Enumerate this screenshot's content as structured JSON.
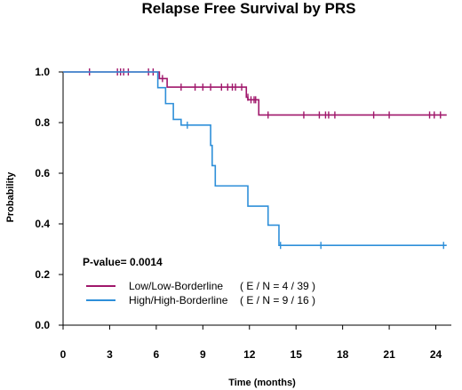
{
  "chart_data": {
    "type": "line",
    "title": "Relapse Free Survival by PRS",
    "xlabel": "Time (months)",
    "ylabel": "Probability",
    "xlim": [
      0,
      25
    ],
    "ylim": [
      0,
      1.0
    ],
    "x_ticks": [
      "0",
      "3",
      "6",
      "9",
      "12",
      "15",
      "18",
      "21",
      "24"
    ],
    "y_ticks": [
      "0.0",
      "0.2",
      "0.4",
      "0.6",
      "0.8",
      "1.0"
    ],
    "annotation": "P-value= 0.0014",
    "legend_position": "bottom-left",
    "grid": false,
    "series": [
      {
        "name": "Low/Low-Borderline",
        "stats": "( E / N = 4 / 39 )",
        "color": "#A0176B",
        "steps": [
          [
            0,
            1.0
          ],
          [
            6.2,
            0.974
          ],
          [
            6.7,
            0.94
          ],
          [
            11.8,
            0.9
          ],
          [
            11.9,
            0.89
          ],
          [
            12.6,
            0.83
          ],
          [
            24.7,
            0.83
          ]
        ],
        "censored": [
          [
            1.7,
            1.0
          ],
          [
            3.5,
            1.0
          ],
          [
            3.7,
            1.0
          ],
          [
            3.9,
            1.0
          ],
          [
            4.2,
            1.0
          ],
          [
            5.5,
            1.0
          ],
          [
            5.8,
            1.0
          ],
          [
            6.4,
            0.974
          ],
          [
            7.6,
            0.94
          ],
          [
            8.5,
            0.94
          ],
          [
            9.0,
            0.94
          ],
          [
            9.5,
            0.94
          ],
          [
            10.2,
            0.94
          ],
          [
            10.6,
            0.94
          ],
          [
            10.9,
            0.94
          ],
          [
            11.1,
            0.94
          ],
          [
            11.5,
            0.94
          ],
          [
            11.9,
            0.9
          ],
          [
            12.1,
            0.89
          ],
          [
            12.3,
            0.89
          ],
          [
            12.4,
            0.89
          ],
          [
            13.2,
            0.83
          ],
          [
            15.5,
            0.83
          ],
          [
            16.5,
            0.83
          ],
          [
            16.9,
            0.83
          ],
          [
            17.1,
            0.83
          ],
          [
            17.5,
            0.83
          ],
          [
            20.0,
            0.83
          ],
          [
            21.0,
            0.83
          ],
          [
            23.6,
            0.83
          ],
          [
            23.9,
            0.83
          ],
          [
            24.3,
            0.83
          ]
        ]
      },
      {
        "name": "High/High-Borderline",
        "stats": "( E / N = 9 / 16 )",
        "color": "#2E8FD9",
        "steps": [
          [
            0,
            1.0
          ],
          [
            6.1,
            0.938
          ],
          [
            6.6,
            0.875
          ],
          [
            7.1,
            0.8125
          ],
          [
            7.6,
            0.79
          ],
          [
            9.5,
            0.71
          ],
          [
            9.6,
            0.63
          ],
          [
            9.8,
            0.55
          ],
          [
            11.9,
            0.47
          ],
          [
            13.2,
            0.395
          ],
          [
            13.9,
            0.315
          ],
          [
            24.7,
            0.315
          ]
        ],
        "censored": [
          [
            8.0,
            0.79
          ],
          [
            14.0,
            0.315
          ],
          [
            16.6,
            0.315
          ],
          [
            24.5,
            0.315
          ]
        ]
      }
    ]
  }
}
